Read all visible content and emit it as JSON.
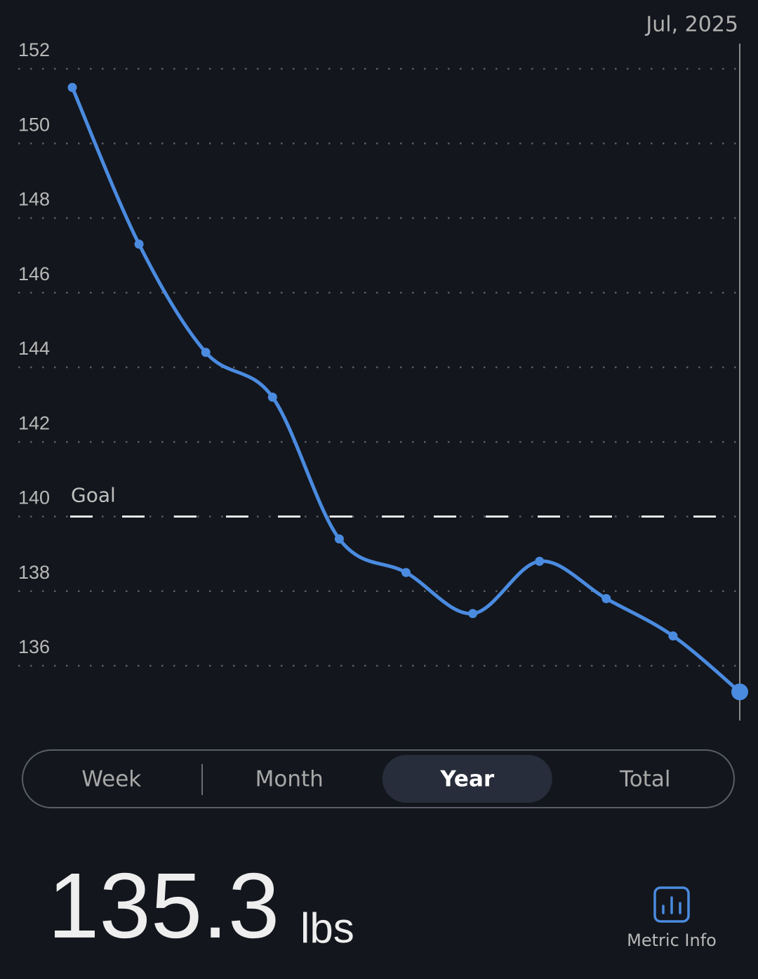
{
  "chart_data": {
    "type": "line",
    "date_label": "Jul, 2025",
    "values": [
      151.5,
      147.3,
      144.4,
      143.2,
      139.4,
      138.5,
      137.4,
      138.8,
      137.8,
      136.8,
      135.3
    ],
    "color": "#4a8be0",
    "ylim": [
      134.5,
      152.7
    ],
    "yticks": [
      136,
      138,
      140,
      142,
      144,
      146,
      148,
      150,
      152
    ],
    "grid": true,
    "goal": 140,
    "goal_label": "Goal"
  },
  "tabs": [
    "Week",
    "Month",
    "Year",
    "Total"
  ],
  "selected_tab": 2,
  "reading": {
    "value": "135.3",
    "unit": "lbs"
  },
  "metric_info": "Metric Info"
}
